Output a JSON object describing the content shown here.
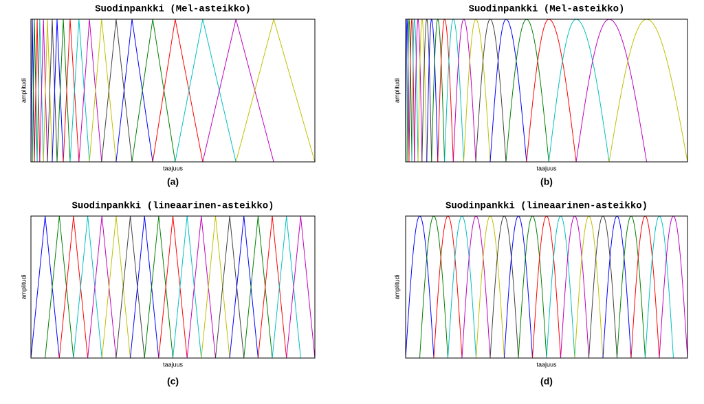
{
  "chart_data": [
    {
      "type": "filterbank",
      "shape": "triangle",
      "title": "Suodinpankki (Mel-asteikko)",
      "xlabel": "taajuus",
      "ylabel": "amplitudi",
      "caption": "(a)",
      "x": [
        0,
        0.005,
        0.012,
        0.022,
        0.031,
        0.044,
        0.058,
        0.075,
        0.092,
        0.114,
        0.138,
        0.169,
        0.206,
        0.249,
        0.3,
        0.356,
        0.429,
        0.508,
        0.605,
        0.722,
        0.855,
        1
      ],
      "peak": 1,
      "xlim": [
        0,
        1
      ],
      "ylim": [
        0,
        1
      ],
      "colors": [
        "#0000ff",
        "#008000",
        "#ff0000",
        "#00c0c0",
        "#c000c0",
        "#c0c000",
        "#404040"
      ]
    },
    {
      "type": "filterbank",
      "shape": "sine",
      "title": "Suodinpankki (Mel-asteikko)",
      "xlabel": "taajuus",
      "ylabel": "amplitudi",
      "caption": "(b)",
      "x": [
        0,
        0.005,
        0.012,
        0.022,
        0.031,
        0.044,
        0.058,
        0.075,
        0.092,
        0.114,
        0.138,
        0.169,
        0.206,
        0.249,
        0.3,
        0.356,
        0.429,
        0.508,
        0.605,
        0.722,
        0.855,
        1
      ],
      "peak": 1,
      "xlim": [
        0,
        1
      ],
      "ylim": [
        0,
        1
      ],
      "colors": [
        "#0000ff",
        "#008000",
        "#ff0000",
        "#00c0c0",
        "#c000c0",
        "#c0c000",
        "#404040"
      ]
    },
    {
      "type": "filterbank",
      "shape": "triangle",
      "title": "Suodinpankki (lineaarinen-asteikko)",
      "xlabel": "taajuus",
      "ylabel": "amplitudi",
      "caption": "(c)",
      "x": [
        0,
        0.05,
        0.1,
        0.15,
        0.2,
        0.25,
        0.3,
        0.35,
        0.4,
        0.45,
        0.5,
        0.55,
        0.6,
        0.65,
        0.7,
        0.75,
        0.8,
        0.85,
        0.9,
        0.95,
        1
      ],
      "peak": 1,
      "xlim": [
        0,
        1
      ],
      "ylim": [
        0,
        1
      ],
      "colors": [
        "#0000ff",
        "#008000",
        "#ff0000",
        "#00c0c0",
        "#c000c0",
        "#c0c000",
        "#404040"
      ]
    },
    {
      "type": "filterbank",
      "shape": "sine",
      "title": "Suodinpankki (lineaarinen-asteikko)",
      "xlabel": "taajuus",
      "ylabel": "amplitudi",
      "caption": "(d)",
      "x": [
        0,
        0.05,
        0.1,
        0.15,
        0.2,
        0.25,
        0.3,
        0.35,
        0.4,
        0.45,
        0.5,
        0.55,
        0.6,
        0.65,
        0.7,
        0.75,
        0.8,
        0.85,
        0.9,
        0.95,
        1
      ],
      "peak": 1,
      "xlim": [
        0,
        1
      ],
      "ylim": [
        0,
        1
      ],
      "colors": [
        "#0000ff",
        "#008000",
        "#ff0000",
        "#00c0c0",
        "#c000c0",
        "#c0c000",
        "#404040"
      ]
    }
  ]
}
